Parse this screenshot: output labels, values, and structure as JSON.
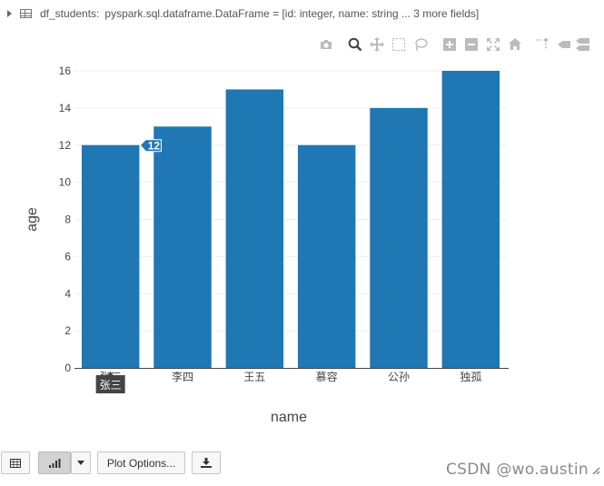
{
  "dataframe_header": {
    "name": "df_students:",
    "schema": "pyspark.sql.dataframe.DataFrame = [id: integer, name: string ... 3 more fields]"
  },
  "modebar_icons": [
    "camera-icon",
    "zoom-icon",
    "pan-icon",
    "box-select-icon",
    "lasso-select-icon",
    "zoom-in-icon",
    "zoom-out-icon",
    "autoscale-icon",
    "reset-axes-icon",
    "spike-lines-icon",
    "hover-closest-icon",
    "hover-compare-icon"
  ],
  "chart_data": {
    "type": "bar",
    "categories": [
      "张三",
      "李四",
      "王五",
      "慕容",
      "公孙",
      "独孤"
    ],
    "values": [
      12,
      13,
      15,
      12,
      14,
      16
    ],
    "xlabel": "name",
    "ylabel": "age",
    "ylim": [
      0,
      16
    ],
    "yticks": [
      0,
      2,
      4,
      6,
      8,
      10,
      12,
      14,
      16
    ],
    "bar_color": "#1f77b4",
    "grid": true,
    "hover": {
      "category_index": 0,
      "value_label": "12",
      "category_label": "张三"
    }
  },
  "toolbar": {
    "table_icon": "table-icon",
    "chart_icon": "bar-chart-icon",
    "dropdown_icon": "caret-down-icon",
    "plot_options_label": "Plot Options...",
    "download_icon": "download-icon"
  },
  "watermark": "CSDN @wo.austin"
}
